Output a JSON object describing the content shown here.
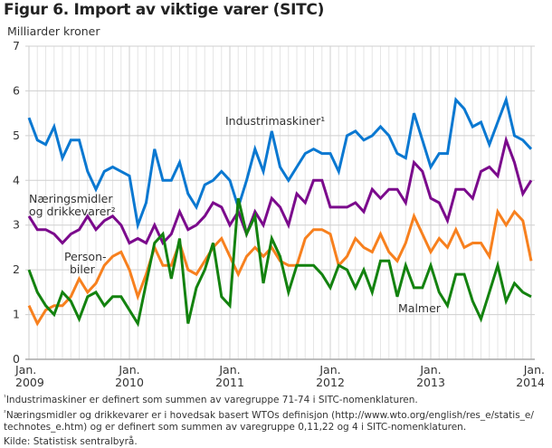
{
  "chart_data": {
    "type": "line",
    "title": "Figur 6. Import av viktige varer (SITC)",
    "ylabel": "Milliarder kroner",
    "xlabel": "",
    "ylim": [
      0,
      7
    ],
    "yticks": [
      "0",
      "1",
      "2",
      "3",
      "4",
      "5",
      "6",
      "7"
    ],
    "xticks": [
      {
        "month_index": 0,
        "line1": "Jan.",
        "line2": "2009"
      },
      {
        "month_index": 12,
        "line1": "Jan.",
        "line2": "2010"
      },
      {
        "month_index": 24,
        "line1": "Jan.",
        "line2": "2011"
      },
      {
        "month_index": 36,
        "line1": "Jan.",
        "line2": "2012"
      },
      {
        "month_index": 48,
        "line1": "Jan.",
        "line2": "2013"
      },
      {
        "month_index": 60,
        "line1": "Jan.",
        "line2": "2014"
      }
    ],
    "x_start": "2009-01",
    "x_end": "2014-01",
    "grid": true,
    "series": [
      {
        "name": "Industrimaskiner",
        "label_line1": "Industrimaskiner¹",
        "label_line2": "",
        "color": "#0a78d1",
        "values": [
          5.4,
          4.9,
          4.8,
          5.2,
          4.5,
          4.9,
          4.9,
          4.2,
          3.8,
          4.2,
          4.3,
          4.2,
          4.1,
          3.0,
          3.5,
          4.7,
          4.0,
          4.0,
          4.4,
          3.7,
          3.4,
          3.9,
          4.0,
          4.2,
          4.0,
          3.4,
          4.0,
          4.7,
          4.2,
          5.1,
          4.3,
          4.0,
          4.3,
          4.6,
          4.7,
          4.6,
          4.6,
          4.2,
          5.0,
          5.1,
          4.9,
          5.0,
          5.2,
          5.0,
          4.6,
          4.5,
          5.5,
          4.9,
          4.3,
          4.6,
          4.6,
          5.8,
          5.6,
          5.2,
          5.3,
          4.8,
          5.3,
          5.8,
          5.0,
          4.9,
          4.7
        ]
      },
      {
        "name": "Næringsmidler og drikkevarer",
        "label_line1": "Næringsmidler",
        "label_line2": "og drikkevarer²",
        "color": "#7b0a8c",
        "values": [
          3.2,
          2.9,
          2.9,
          2.8,
          2.6,
          2.8,
          2.9,
          3.2,
          2.9,
          3.1,
          3.2,
          3.0,
          2.6,
          2.7,
          2.6,
          3.0,
          2.6,
          2.8,
          3.3,
          2.9,
          3.0,
          3.2,
          3.5,
          3.4,
          3.0,
          3.3,
          2.8,
          3.3,
          3.0,
          3.6,
          3.4,
          3.0,
          3.7,
          3.5,
          4.0,
          4.0,
          3.4,
          3.4,
          3.4,
          3.5,
          3.3,
          3.8,
          3.6,
          3.8,
          3.8,
          3.5,
          4.4,
          4.2,
          3.6,
          3.5,
          3.1,
          3.8,
          3.8,
          3.6,
          4.2,
          4.3,
          4.1,
          4.9,
          4.4,
          3.7,
          4.0
        ]
      },
      {
        "name": "Personbiler",
        "label_line1": "Person-",
        "label_line2": "biler",
        "color": "#f7801e",
        "values": [
          1.2,
          0.8,
          1.1,
          1.2,
          1.2,
          1.4,
          1.8,
          1.5,
          1.7,
          2.1,
          2.3,
          2.4,
          2.0,
          1.4,
          1.9,
          2.5,
          2.1,
          2.1,
          2.6,
          2.0,
          1.9,
          2.2,
          2.5,
          2.7,
          2.3,
          1.9,
          2.3,
          2.5,
          2.3,
          2.5,
          2.2,
          2.1,
          2.1,
          2.7,
          2.9,
          2.9,
          2.8,
          2.1,
          2.3,
          2.7,
          2.5,
          2.4,
          2.8,
          2.4,
          2.2,
          2.6,
          3.2,
          2.8,
          2.4,
          2.7,
          2.5,
          2.9,
          2.5,
          2.6,
          2.6,
          2.3,
          3.3,
          3.0,
          3.3,
          3.1,
          2.2
        ]
      },
      {
        "name": "Malmer",
        "label_line1": "Malmer",
        "label_line2": "",
        "color": "#13820f",
        "values": [
          2.0,
          1.5,
          1.2,
          1.0,
          1.5,
          1.3,
          0.9,
          1.4,
          1.5,
          1.2,
          1.4,
          1.4,
          1.1,
          0.8,
          1.7,
          2.6,
          2.8,
          1.8,
          2.7,
          0.8,
          1.6,
          2.0,
          2.6,
          1.4,
          1.2,
          3.6,
          2.8,
          3.2,
          1.7,
          2.7,
          2.3,
          1.5,
          2.1,
          2.1,
          2.1,
          1.9,
          1.6,
          2.1,
          2.0,
          1.6,
          2.0,
          1.5,
          2.2,
          2.2,
          1.4,
          2.1,
          1.6,
          1.6,
          2.1,
          1.5,
          1.2,
          1.9,
          1.9,
          1.3,
          0.9,
          1.5,
          2.1,
          1.3,
          1.7,
          1.5,
          1.4
        ]
      }
    ]
  },
  "footnotes": {
    "note1_marker": "¹",
    "note1_text": "Industrimaskiner er definert som summen av varegruppe 71-74 i SITC-nomenklaturen.",
    "note2_marker": "²",
    "note2_text_line1": "Næringsmidler og drikkevarer  er i hovedsak basert WTOs definisjon (http://www.wto.org/english/res_e/statis_e/",
    "note2_text_line2": "technotes_e.htm) og er definert som summen av varegruppe 0,11,22 og 4 i SITC-nomenklaturen.",
    "source": "Kilde: Statistisk sentralbyrå."
  }
}
